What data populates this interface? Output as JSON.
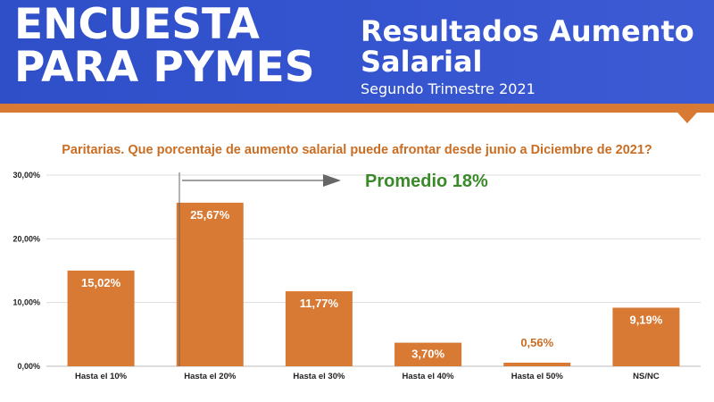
{
  "header": {
    "title_line1": "ENCUESTA",
    "title_line2": "PARA PYMES",
    "results_line1": "Resultados Aumento",
    "results_line2": "Salarial",
    "subtitle": "Segundo Trimestre 2021"
  },
  "colors": {
    "header_blue": "#3554cf",
    "accent_orange": "#d87a34",
    "bar_orange": "#d87a34",
    "title_orange": "#c96d23",
    "annotation_green": "#3a8a2a"
  },
  "annotation": {
    "text": "Promedio 18%"
  },
  "chart_data": {
    "type": "bar",
    "title": "Paritarias. Que porcentaje de aumento salarial puede afrontar desde junio a Diciembre de 2021?",
    "categories": [
      "Hasta el 10%",
      "Hasta el 20%",
      "Hasta el 30%",
      "Hasta el 40%",
      "Hasta el 50%",
      "NS/NC"
    ],
    "values": [
      15.02,
      25.67,
      11.77,
      3.7,
      0.56,
      9.19
    ],
    "data_labels": [
      "15,02%",
      "25,67%",
      "11,77%",
      "3,70%",
      "0,56%",
      "9,19%"
    ],
    "yticks": [
      "0,00%",
      "10,00%",
      "20,00%",
      "30,00%"
    ],
    "ylim": [
      0,
      30
    ],
    "grid": true,
    "xlabel": "",
    "ylabel": ""
  }
}
